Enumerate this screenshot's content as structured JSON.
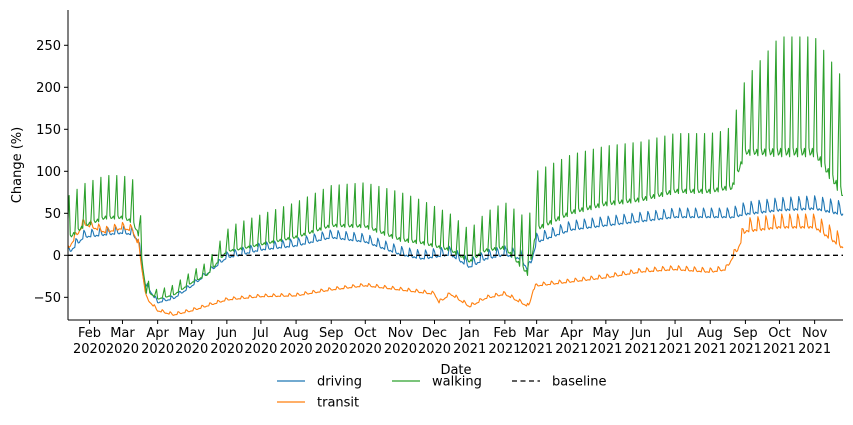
{
  "chart_data": {
    "type": "line",
    "xlabel": "Date",
    "ylabel": "Change (%)",
    "x_range": [
      "2020-01-13",
      "2021-11-26"
    ],
    "ylim": [
      -77,
      292
    ],
    "y_ticks": [
      -50,
      0,
      50,
      100,
      150,
      200,
      250
    ],
    "x_ticks": [
      {
        "date": "2020-02-01",
        "label": "Feb",
        "year": "2020"
      },
      {
        "date": "2020-03-01",
        "label": "Mar",
        "year": "2020"
      },
      {
        "date": "2020-04-01",
        "label": "Apr",
        "year": "2020"
      },
      {
        "date": "2020-05-01",
        "label": "May",
        "year": "2020"
      },
      {
        "date": "2020-06-01",
        "label": "Jun",
        "year": "2020"
      },
      {
        "date": "2020-07-01",
        "label": "Jul",
        "year": "2020"
      },
      {
        "date": "2020-08-01",
        "label": "Aug",
        "year": "2020"
      },
      {
        "date": "2020-09-01",
        "label": "Sep",
        "year": "2020"
      },
      {
        "date": "2020-10-01",
        "label": "Oct",
        "year": "2020"
      },
      {
        "date": "2020-11-01",
        "label": "Nov",
        "year": "2020"
      },
      {
        "date": "2020-12-01",
        "label": "Dec",
        "year": "2020"
      },
      {
        "date": "2021-01-01",
        "label": "Jan",
        "year": "2021"
      },
      {
        "date": "2021-02-01",
        "label": "Feb",
        "year": "2021"
      },
      {
        "date": "2021-03-01",
        "label": "Mar",
        "year": "2021"
      },
      {
        "date": "2021-04-01",
        "label": "Apr",
        "year": "2021"
      },
      {
        "date": "2021-05-01",
        "label": "May",
        "year": "2021"
      },
      {
        "date": "2021-06-01",
        "label": "Jun",
        "year": "2021"
      },
      {
        "date": "2021-07-01",
        "label": "Jul",
        "year": "2021"
      },
      {
        "date": "2021-08-01",
        "label": "Aug",
        "year": "2021"
      },
      {
        "date": "2021-09-01",
        "label": "Sep",
        "year": "2021"
      },
      {
        "date": "2021-10-01",
        "label": "Oct",
        "year": "2021"
      },
      {
        "date": "2021-11-01",
        "label": "Nov",
        "year": "2021"
      }
    ],
    "grid": false,
    "legend_position": "bottom-center",
    "series": [
      {
        "name": "driving",
        "color": "#1f77b4",
        "points": [
          [
            "2020-01-13",
            5
          ],
          [
            "2020-01-27",
            25
          ],
          [
            "2020-02-15",
            28
          ],
          [
            "2020-03-01",
            30
          ],
          [
            "2020-03-10",
            28
          ],
          [
            "2020-03-15",
            20
          ],
          [
            "2020-03-20",
            -30
          ],
          [
            "2020-04-01",
            -55
          ],
          [
            "2020-04-15",
            -50
          ],
          [
            "2020-05-01",
            -35
          ],
          [
            "2020-05-15",
            -20
          ],
          [
            "2020-06-01",
            0
          ],
          [
            "2020-07-01",
            10
          ],
          [
            "2020-08-01",
            15
          ],
          [
            "2020-09-01",
            25
          ],
          [
            "2020-10-01",
            20
          ],
          [
            "2020-11-01",
            5
          ],
          [
            "2020-11-20",
            0
          ],
          [
            "2020-12-15",
            5
          ],
          [
            "2021-01-01",
            -10
          ],
          [
            "2021-01-15",
            0
          ],
          [
            "2021-02-01",
            5
          ],
          [
            "2021-02-15",
            0
          ],
          [
            "2021-02-22",
            -15
          ],
          [
            "2021-03-01",
            20
          ],
          [
            "2021-04-01",
            35
          ],
          [
            "2021-05-01",
            40
          ],
          [
            "2021-06-01",
            45
          ],
          [
            "2021-07-01",
            50
          ],
          [
            "2021-08-01",
            50
          ],
          [
            "2021-08-20",
            50
          ],
          [
            "2021-09-01",
            55
          ],
          [
            "2021-10-01",
            60
          ],
          [
            "2021-11-01",
            62
          ],
          [
            "2021-11-26",
            55
          ]
        ],
        "weekly_amplitude": [
          [
            "2020-01-13",
            14
          ],
          [
            "2020-03-15",
            14
          ],
          [
            "2020-03-25",
            6
          ],
          [
            "2020-05-20",
            8
          ],
          [
            "2020-06-10",
            14
          ],
          [
            "2020-10-01",
            16
          ],
          [
            "2021-03-01",
            18
          ],
          [
            "2021-08-15",
            18
          ],
          [
            "2021-09-01",
            24
          ],
          [
            "2021-11-26",
            26
          ]
        ]
      },
      {
        "name": "transit",
        "color": "#ff7f0e",
        "points": [
          [
            "2020-01-13",
            10
          ],
          [
            "2020-01-27",
            40
          ],
          [
            "2020-02-15",
            30
          ],
          [
            "2020-03-01",
            35
          ],
          [
            "2020-03-10",
            32
          ],
          [
            "2020-03-15",
            15
          ],
          [
            "2020-03-22",
            -50
          ],
          [
            "2020-04-01",
            -65
          ],
          [
            "2020-04-15",
            -70
          ],
          [
            "2020-05-01",
            -65
          ],
          [
            "2020-06-01",
            -52
          ],
          [
            "2020-07-01",
            -48
          ],
          [
            "2020-08-01",
            -47
          ],
          [
            "2020-09-01",
            -40
          ],
          [
            "2020-10-01",
            -35
          ],
          [
            "2020-11-01",
            -40
          ],
          [
            "2020-12-01",
            -45
          ],
          [
            "2020-12-05",
            -55
          ],
          [
            "2020-12-15",
            -45
          ],
          [
            "2021-01-01",
            -60
          ],
          [
            "2021-01-15",
            -50
          ],
          [
            "2021-02-01",
            -45
          ],
          [
            "2021-02-22",
            -60
          ],
          [
            "2021-02-26",
            -40
          ],
          [
            "2021-03-01",
            -35
          ],
          [
            "2021-04-01",
            -30
          ],
          [
            "2021-05-01",
            -25
          ],
          [
            "2021-06-01",
            -18
          ],
          [
            "2021-07-01",
            -15
          ],
          [
            "2021-08-01",
            -18
          ],
          [
            "2021-08-15",
            -15
          ],
          [
            "2021-08-25",
            10
          ],
          [
            "2021-09-01",
            35
          ],
          [
            "2021-10-01",
            40
          ],
          [
            "2021-11-01",
            40
          ],
          [
            "2021-11-26",
            15
          ]
        ],
        "weekly_amplitude": [
          [
            "2020-01-13",
            12
          ],
          [
            "2020-03-15",
            12
          ],
          [
            "2020-03-25",
            5
          ],
          [
            "2020-06-01",
            5
          ],
          [
            "2021-02-22",
            6
          ],
          [
            "2021-08-20",
            9
          ],
          [
            "2021-09-01",
            26
          ],
          [
            "2021-11-26",
            26
          ]
        ]
      },
      {
        "name": "walking",
        "color": "#2ca02c",
        "points": [
          [
            "2020-01-13",
            30
          ],
          [
            "2020-01-27",
            45
          ],
          [
            "2020-02-15",
            55
          ],
          [
            "2020-03-01",
            55
          ],
          [
            "2020-03-10",
            50
          ],
          [
            "2020-03-15",
            35
          ],
          [
            "2020-03-22",
            -40
          ],
          [
            "2020-04-01",
            -50
          ],
          [
            "2020-04-15",
            -45
          ],
          [
            "2020-05-01",
            -30
          ],
          [
            "2020-05-15",
            -20
          ],
          [
            "2020-06-01",
            10
          ],
          [
            "2020-07-01",
            20
          ],
          [
            "2020-08-01",
            30
          ],
          [
            "2020-09-01",
            45
          ],
          [
            "2020-10-01",
            45
          ],
          [
            "2020-11-01",
            30
          ],
          [
            "2020-11-20",
            25
          ],
          [
            "2020-12-15",
            15
          ],
          [
            "2021-01-01",
            0
          ],
          [
            "2021-01-15",
            15
          ],
          [
            "2021-02-01",
            20
          ],
          [
            "2021-02-22",
            -10
          ],
          [
            "2021-03-01",
            45
          ],
          [
            "2021-04-01",
            65
          ],
          [
            "2021-05-01",
            75
          ],
          [
            "2021-06-01",
            80
          ],
          [
            "2021-07-01",
            90
          ],
          [
            "2021-08-01",
            90
          ],
          [
            "2021-08-20",
            95
          ],
          [
            "2021-09-01",
            140
          ],
          [
            "2021-10-01",
            150
          ],
          [
            "2021-11-01",
            150
          ],
          [
            "2021-11-26",
            100
          ]
        ],
        "weekly_amplitude": [
          [
            "2020-01-13",
            40
          ],
          [
            "2020-03-15",
            40
          ],
          [
            "2020-03-25",
            8
          ],
          [
            "2020-05-15",
            12
          ],
          [
            "2020-06-10",
            25
          ],
          [
            "2020-09-01",
            38
          ],
          [
            "2020-11-01",
            45
          ],
          [
            "2021-01-01",
            30
          ],
          [
            "2021-03-01",
            55
          ],
          [
            "2021-08-15",
            55
          ],
          [
            "2021-09-01",
            70
          ],
          [
            "2021-10-01",
            110
          ],
          [
            "2021-11-26",
            110
          ]
        ]
      },
      {
        "name": "baseline",
        "color": "#000000",
        "style": "dashed",
        "points": [
          [
            "2020-01-13",
            0
          ],
          [
            "2021-11-26",
            0
          ]
        ]
      }
    ]
  }
}
